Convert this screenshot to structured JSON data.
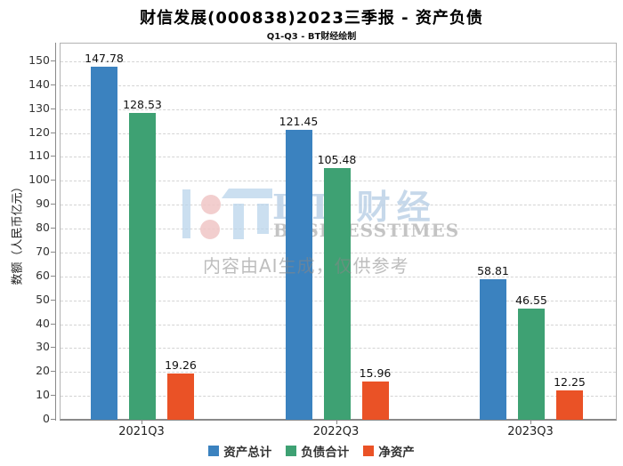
{
  "header": {
    "title": "财信发展(000838)2023三季报 - 资产负债",
    "subtitle": "Q1-Q3 - BT财经绘制"
  },
  "chart_data": {
    "type": "bar",
    "title": "财信发展(000838)2023三季报 - 资产负债",
    "subtitle": "Q1-Q3 - BT财经绘制",
    "categories": [
      "2021Q3",
      "2022Q3",
      "2023Q3"
    ],
    "series": [
      {
        "name": "资产总计",
        "color": "#3b82bf",
        "values": [
          147.78,
          121.45,
          58.81
        ]
      },
      {
        "name": "负债合计",
        "color": "#3ea173",
        "values": [
          128.53,
          105.48,
          46.55
        ]
      },
      {
        "name": "净资产",
        "color": "#ea5226",
        "values": [
          19.26,
          15.96,
          12.25
        ]
      }
    ],
    "ylabel": "数额（人民币亿元）",
    "xlabel": "",
    "ylim": [
      0,
      150
    ],
    "ytick_step": 10,
    "grid": "horizontal-dashed",
    "legend_position": "bottom",
    "value_labels": true
  },
  "watermark": {
    "logo_text": "BT 财经",
    "brand_text": "BUSINESSTIMES",
    "disclaimer": "内容由AI生成，仅供参考"
  },
  "colors": {
    "grid": "#d4d4d4",
    "axis": "#8a8a8a",
    "plot_border": "#b3b3b3",
    "tick_text": "#333333",
    "label_text": "#111111"
  }
}
